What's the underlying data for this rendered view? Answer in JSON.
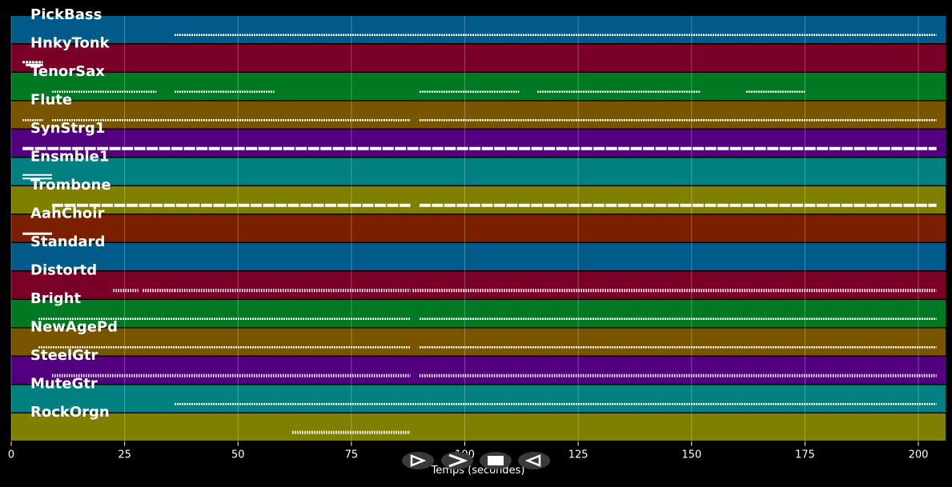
{
  "chart_data": {
    "type": "piano-roll",
    "xlabel": "Temps (secondes)",
    "xlim": [
      0,
      206
    ],
    "xticks": [
      0,
      25,
      50,
      75,
      100,
      125,
      150,
      175,
      200
    ],
    "grid": true,
    "tracks": [
      {
        "name": "PickBass",
        "color": "#005a8a",
        "segments": [
          [
            36,
            204
          ]
        ],
        "style": "dotted"
      },
      {
        "name": "HnkyTonk",
        "color": "#7a0028",
        "segments": [
          [
            2.5,
            7
          ]
        ],
        "style": "blob"
      },
      {
        "name": "TenorSax",
        "color": "#007a22",
        "segments": [
          [
            9,
            32
          ],
          [
            36,
            58
          ],
          [
            90,
            112
          ],
          [
            116,
            152
          ],
          [
            162,
            175
          ]
        ],
        "style": "dotted"
      },
      {
        "name": "Flute",
        "color": "#7a5500",
        "segments": [
          [
            2.5,
            7
          ],
          [
            9,
            88
          ],
          [
            90,
            204
          ]
        ],
        "style": "dotted"
      },
      {
        "name": "SynStrg1",
        "color": "#530080",
        "segments": [
          [
            2.5,
            204
          ]
        ],
        "style": "thick"
      },
      {
        "name": "Ensmble1",
        "color": "#008080",
        "segments": [
          [
            2.5,
            9
          ]
        ],
        "style": "double"
      },
      {
        "name": "Trombone",
        "color": "#808000",
        "segments": [
          [
            9,
            88
          ],
          [
            90,
            204
          ]
        ],
        "style": "thick"
      },
      {
        "name": "AahChoir",
        "color": "#7a2000",
        "segments": [
          [
            2.5,
            9
          ]
        ],
        "style": "line"
      },
      {
        "name": "Standard",
        "color": "#005a8a",
        "segments": [],
        "style": "none"
      },
      {
        "name": "Distortd",
        "color": "#7a0028",
        "segments": [
          [
            22.5,
            28
          ],
          [
            29,
            36
          ],
          [
            36,
            88
          ],
          [
            88.5,
            204
          ]
        ],
        "style": "dashed"
      },
      {
        "name": "Bright",
        "color": "#007a22",
        "segments": [
          [
            6,
            88
          ],
          [
            90,
            204
          ]
        ],
        "style": "dotted"
      },
      {
        "name": "NewAgePd",
        "color": "#7a5500",
        "segments": [
          [
            6,
            88
          ],
          [
            90,
            204
          ]
        ],
        "style": "dotted"
      },
      {
        "name": "SteelGtr",
        "color": "#530080",
        "segments": [
          [
            9,
            88
          ],
          [
            90,
            204
          ]
        ],
        "style": "dashed"
      },
      {
        "name": "MuteGtr",
        "color": "#008080",
        "segments": [
          [
            36,
            204
          ]
        ],
        "style": "dotted"
      },
      {
        "name": "RockOrgn",
        "color": "#808000",
        "segments": [
          [
            62,
            88
          ]
        ],
        "style": "dashed"
      }
    ]
  },
  "controls": {
    "buttons": [
      {
        "name": "play-from-start-button",
        "icon": "play-outline-icon"
      },
      {
        "name": "play-button",
        "icon": "chevron-right-icon"
      },
      {
        "name": "stop-button",
        "icon": "stop-icon"
      },
      {
        "name": "rewind-button",
        "icon": "rewind-icon"
      }
    ]
  }
}
